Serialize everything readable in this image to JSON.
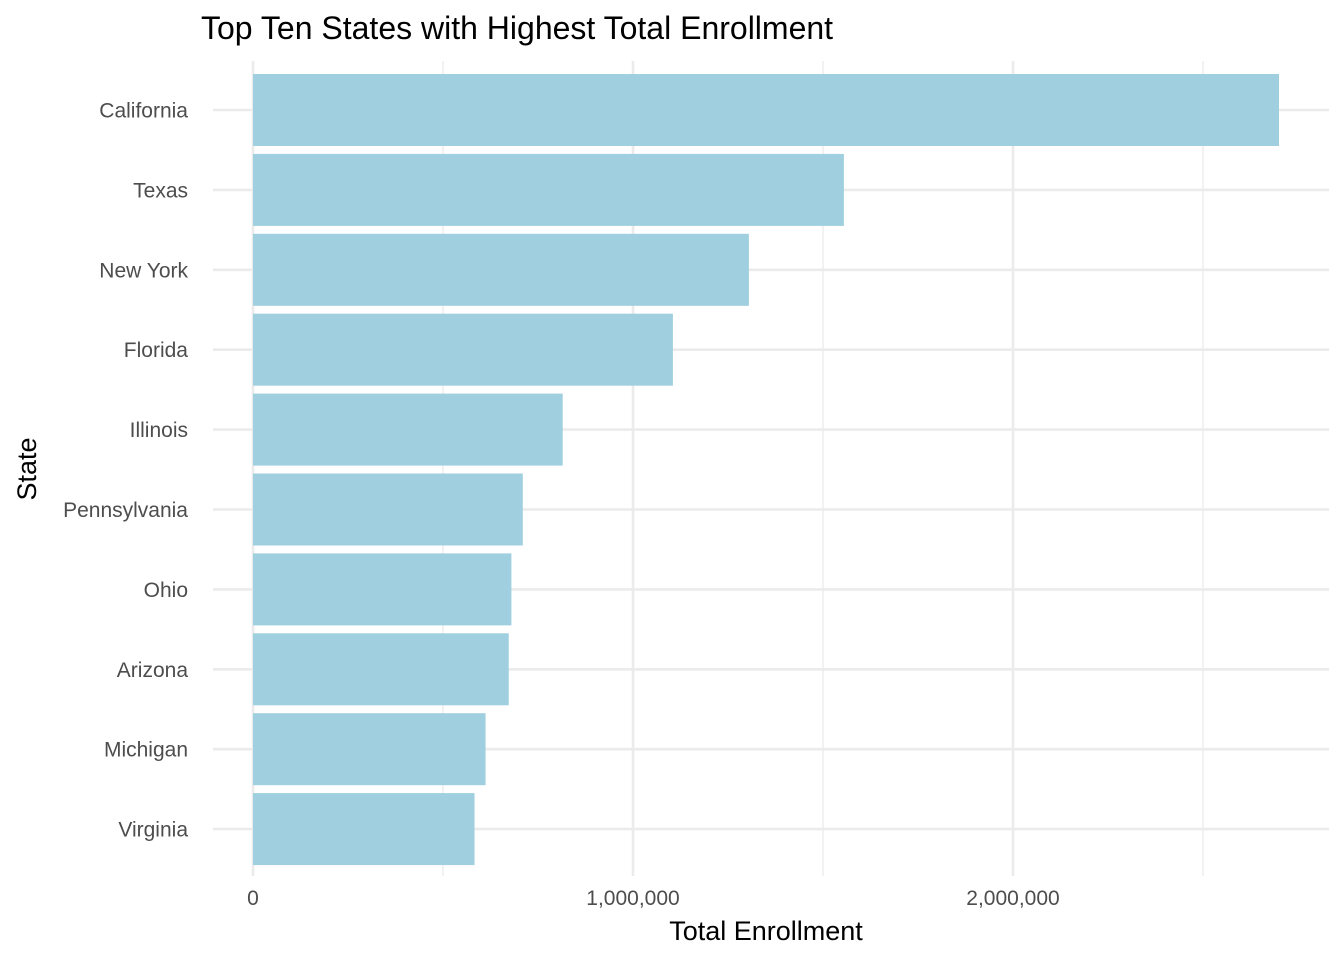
{
  "chart_data": {
    "type": "bar",
    "orientation": "horizontal",
    "title": "Top Ten States with Highest Total Enrollment",
    "xlabel": "Total Enrollment",
    "ylabel": "State",
    "categories": [
      "California",
      "Texas",
      "New York",
      "Florida",
      "Illinois",
      "Pennsylvania",
      "Ohio",
      "Arizona",
      "Michigan",
      "Virginia"
    ],
    "values": [
      2700000,
      1555000,
      1305000,
      1105000,
      815000,
      710000,
      680000,
      673000,
      612000,
      583000
    ],
    "xlim": [
      0,
      2850000
    ],
    "xticks": [
      0,
      1000000,
      2000000
    ],
    "xtick_labels": [
      "0",
      "1,000,000",
      "2,000,000"
    ],
    "grid": true,
    "bar_color": "#a0cfdf",
    "grid_color": "#ebebeb"
  }
}
